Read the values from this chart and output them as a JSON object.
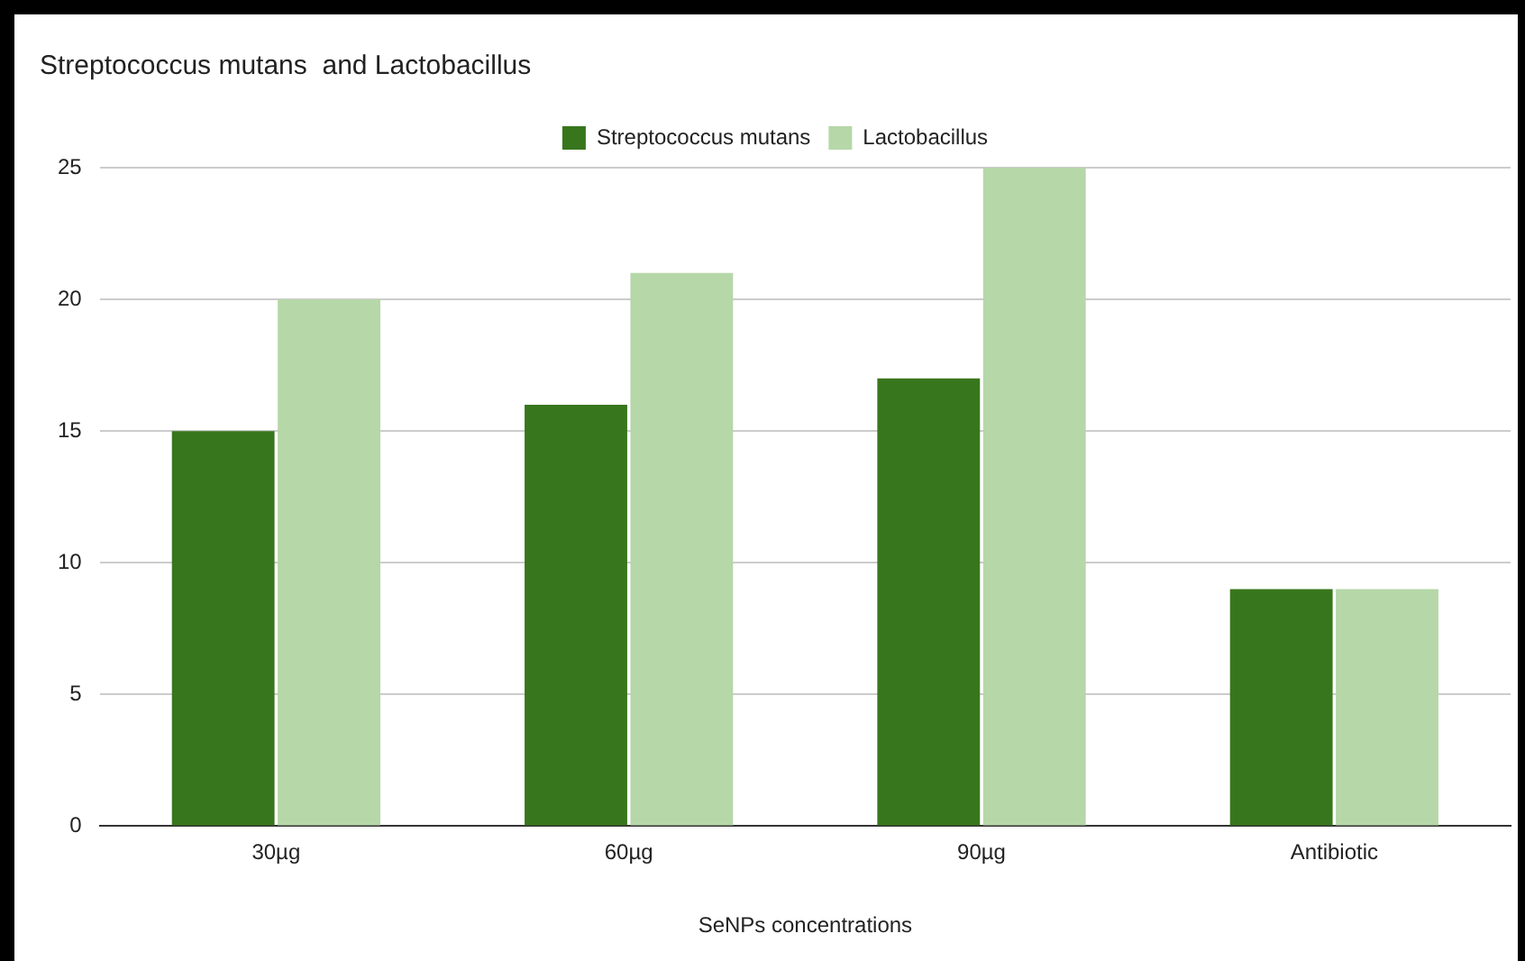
{
  "chart_data": {
    "type": "bar",
    "title": "Streptococcus mutans  and Lactobacillus",
    "xlabel": "SeNPs concentrations",
    "categories": [
      "30µg",
      "60µg",
      "90µg",
      "Antibiotic"
    ],
    "series": [
      {
        "name": "Streptococcus mutans",
        "color": "#38761d",
        "values": [
          15,
          16,
          17,
          9
        ]
      },
      {
        "name": "Lactobacillus",
        "color": "#b6d7a8",
        "values": [
          20,
          21,
          25,
          9
        ]
      }
    ],
    "ylim": [
      0,
      25
    ],
    "yticks": [
      0,
      5,
      10,
      15,
      20,
      25
    ],
    "grid": "y",
    "legend": "top"
  }
}
